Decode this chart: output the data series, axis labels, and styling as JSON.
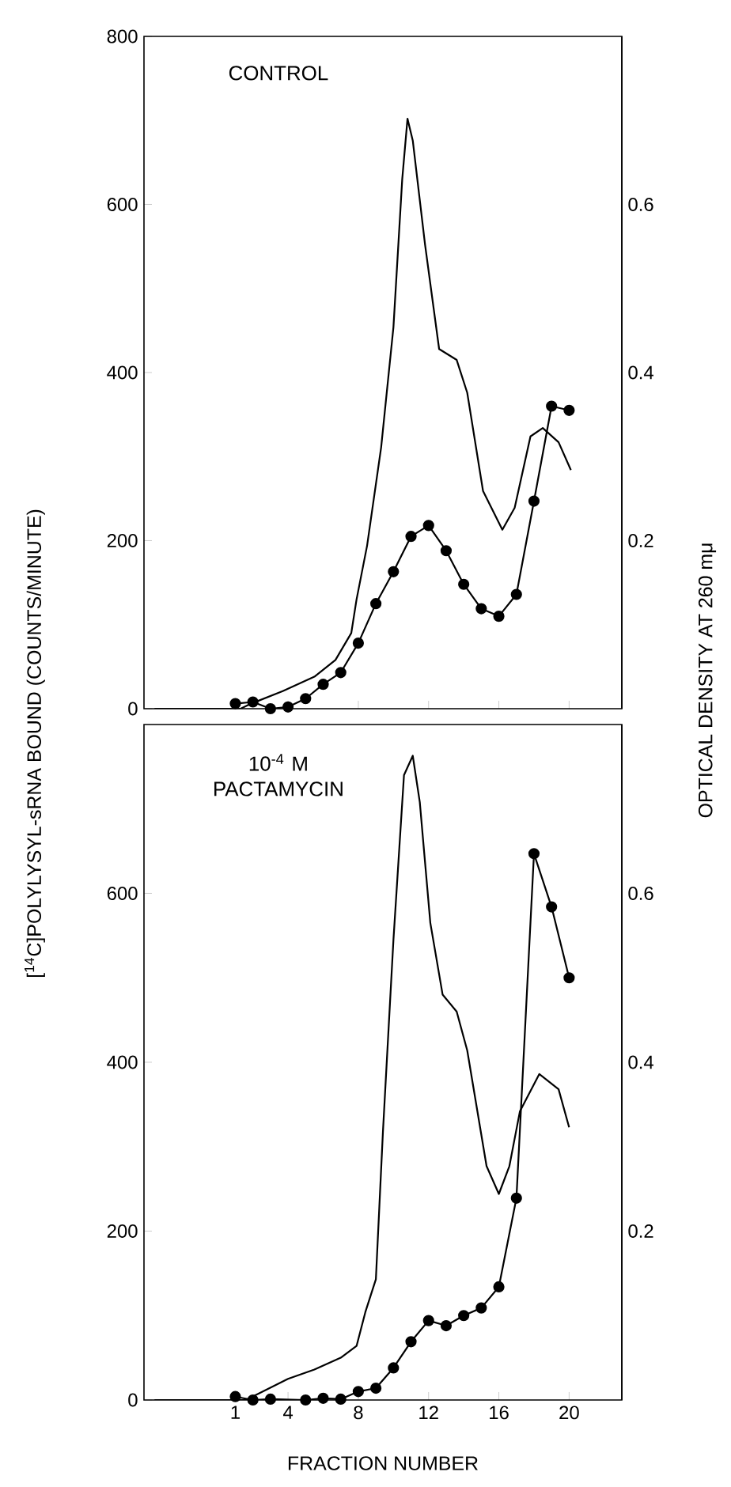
{
  "chart_data": [
    {
      "type": "line",
      "title": "CONTROL",
      "ylabel": "[$^{14}$C]POLYLYSYL-sRNA BOUND (COUNTS/MINUTE)",
      "y2label": "OPTICAL DENSITY AT 260 mμ",
      "xlim": [
        -4.2,
        23
      ],
      "xticks": [
        1,
        4,
        8,
        12,
        16,
        20
      ],
      "ylim": [
        0,
        800
      ],
      "yticks": [
        0,
        200,
        400,
        600,
        800
      ],
      "y2lim": [
        0,
        0.8
      ],
      "y2ticks": [
        0.2,
        0.4,
        0.6
      ],
      "tick_labels": "y",
      "series": [
        {
          "type": "line",
          "marker": "circle",
          "color": "#000000",
          "x": [
            1,
            2,
            3,
            4,
            5,
            6,
            7,
            8,
            9,
            10,
            11,
            12,
            13,
            14,
            15,
            16,
            17,
            18,
            19,
            20
          ],
          "values": [
            6,
            8,
            0,
            2,
            12,
            29,
            43,
            78,
            125,
            163,
            205,
            218,
            188,
            148,
            119,
            110,
            136,
            247,
            360,
            355
          ]
        },
        {
          "type": "line",
          "axis": "y2",
          "marker": "none",
          "color": "#000000",
          "x": [
            -3.6,
            1.3,
            1.9,
            3.7,
            5.5,
            6.7,
            7.6,
            7.9,
            8.5,
            9.3,
            10.0,
            10.5,
            10.8,
            11.1,
            11.8,
            12.6,
            13.6,
            14.2,
            15.1,
            16.2,
            16.9,
            17.8,
            18.5,
            19.4,
            20.1
          ],
          "values": [
            0,
            0,
            0.006,
            0.021,
            0.038,
            0.058,
            0.09,
            0.13,
            0.194,
            0.311,
            0.454,
            0.63,
            0.702,
            0.676,
            0.552,
            0.428,
            0.415,
            0.376,
            0.259,
            0.213,
            0.239,
            0.324,
            0.334,
            0.317,
            0.284
          ]
        }
      ]
    },
    {
      "type": "line",
      "title": "10$^{-4}$ M PACTAMYCIN",
      "xlabel": "FRACTION NUMBER",
      "xlim": [
        -4.2,
        23
      ],
      "xticks": [
        1,
        4,
        8,
        12,
        16,
        20
      ],
      "ylim": [
        0,
        800
      ],
      "yticks": [
        0,
        200,
        400,
        600
      ],
      "y2lim": [
        0,
        0.8
      ],
      "y2ticks": [
        0.2,
        0.4,
        0.6
      ],
      "series": [
        {
          "type": "line",
          "marker": "circle",
          "color": "#000000",
          "x": [
            1,
            2,
            3,
            5,
            6,
            7,
            8,
            9,
            10,
            11,
            12,
            13,
            14,
            15,
            16,
            17,
            18,
            19,
            20
          ],
          "values": [
            4,
            0,
            1,
            0,
            2,
            1,
            10,
            14,
            38,
            69,
            94,
            88,
            100,
            109,
            134,
            239,
            647,
            584,
            500
          ]
        },
        {
          "type": "line",
          "axis": "y2",
          "marker": "none",
          "color": "#000000",
          "x": [
            -3.6,
            1.6,
            4.0,
            5.5,
            7.0,
            7.9,
            8.4,
            9.0,
            9.4,
            10.0,
            10.6,
            11.1,
            11.5,
            12.1,
            12.8,
            13.6,
            14.2,
            15.3,
            16.0,
            16.6,
            17.2,
            18.3,
            19.4,
            20.0
          ],
          "values": [
            0,
            0,
            0.025,
            0.036,
            0.05,
            0.064,
            0.104,
            0.143,
            0.317,
            0.545,
            0.74,
            0.763,
            0.708,
            0.565,
            0.48,
            0.46,
            0.414,
            0.277,
            0.244,
            0.277,
            0.342,
            0.386,
            0.368,
            0.323
          ]
        }
      ]
    }
  ]
}
